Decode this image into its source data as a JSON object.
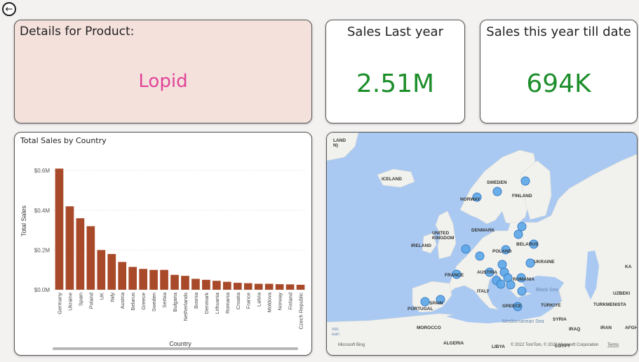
{
  "nav": {
    "back_icon": "back-arrow-icon"
  },
  "details": {
    "title": "Details for Product:",
    "product": "Lopid"
  },
  "kpis": [
    {
      "title": "Sales Last year",
      "value": "2.51M"
    },
    {
      "title": "Sales this year till date",
      "value": "694K"
    }
  ],
  "colors": {
    "bar": "#a84a2a",
    "kpi": "#1c8e2a",
    "product": "#e0459a",
    "details_bg": "#f4e1dc",
    "map_water": "#a9c9f2",
    "map_land": "#f1f1ee",
    "map_marker": "#5aa6e8"
  },
  "chart_data": {
    "type": "bar",
    "title": "Total Sales by Country",
    "xlabel": "Country",
    "ylabel": "Total Sales",
    "ylim": [
      0,
      0.65
    ],
    "yticks": [
      0,
      0.2,
      0.4,
      0.6
    ],
    "ytick_labels": [
      "$0.0M",
      "$0.2M",
      "$0.4M",
      "$0.6M"
    ],
    "categories": [
      "Germany",
      "Ukraine",
      "Spain",
      "Poland",
      "UK",
      "Italy",
      "Austria",
      "Belarus",
      "Greece",
      "Sweden",
      "Serbia",
      "Bulgaria",
      "Netherlands",
      "Bosnia",
      "Denmark",
      "Lithuania",
      "Romania",
      "Croatia",
      "France",
      "Latvia",
      "Moldova",
      "Norway",
      "Finland",
      "Czech Republic"
    ],
    "values": [
      0.61,
      0.42,
      0.36,
      0.32,
      0.2,
      0.18,
      0.14,
      0.115,
      0.105,
      0.1,
      0.1,
      0.075,
      0.07,
      0.055,
      0.05,
      0.045,
      0.04,
      0.035,
      0.033,
      0.03,
      0.03,
      0.028,
      0.027,
      0.025
    ],
    "grid": true,
    "legend": "none"
  },
  "map": {
    "labels": [
      "LAND\nN)",
      "ICELAND",
      "SWEDEN",
      "FINLAND",
      "NORWAY",
      "DENMARK",
      "UNITED\nKINGDOM",
      "IRELAND",
      "BELARUS",
      "POLAND",
      "UKRAINE",
      "FRANCE",
      "AUSTRIA",
      "ROMANIA",
      "ITALY",
      "Black Sea",
      "SPAIN",
      "PORTUGAL",
      "GREECE",
      "TÜRKIYE",
      "TURKMENISTA",
      "UZBEKI",
      "KA",
      "SYRIA",
      "IRAQ",
      "IRAN",
      "AFGHA",
      "MOROCCO",
      "ALGERIA",
      "LIBYA",
      "EGYPT",
      "Mediterranean Sea",
      "ntic\nean"
    ],
    "attribution": "© 2022 TomTom, © 2022 Microsoft Corporation",
    "terms": "Terms",
    "bing": "Microsoft Bing"
  }
}
